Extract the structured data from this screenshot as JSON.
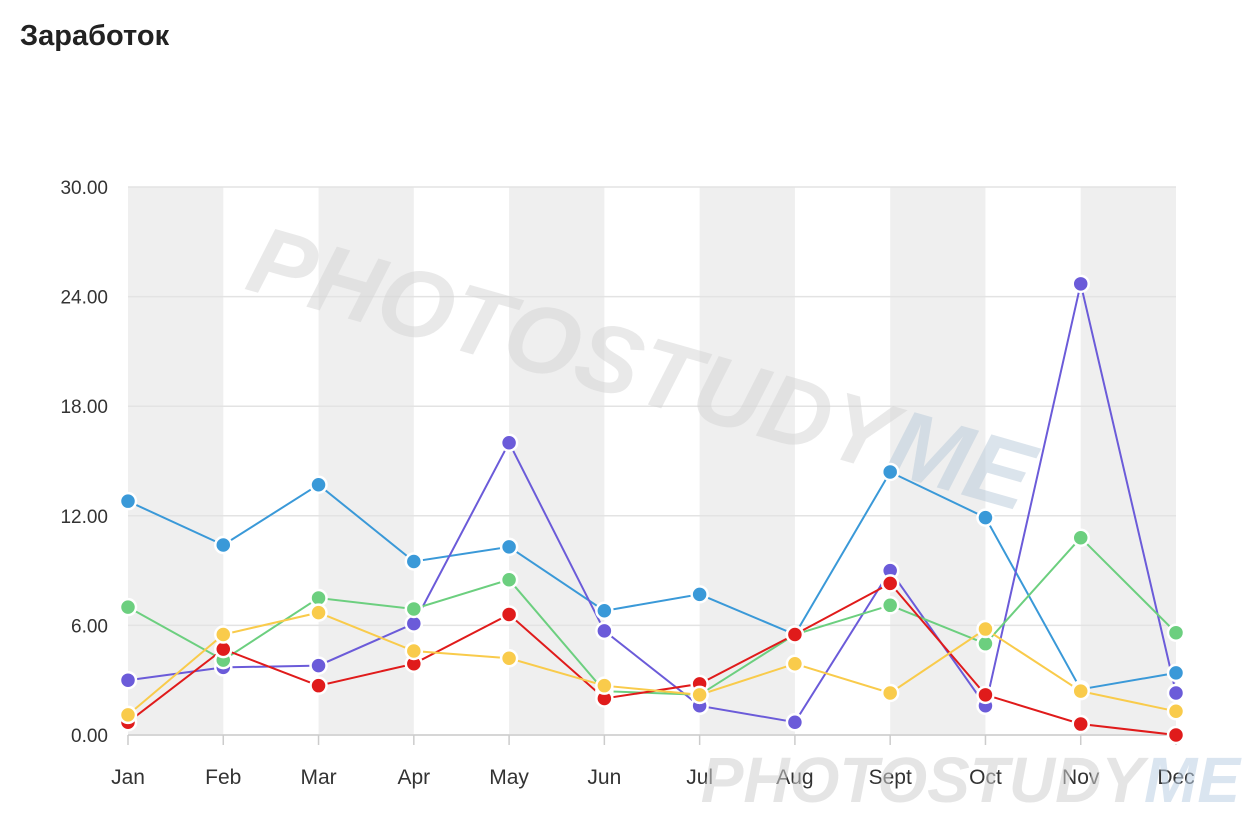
{
  "title": "Заработок",
  "watermark": {
    "text_a": "PHOTOSTUDY",
    "text_b": "ME"
  },
  "chart_data": {
    "type": "line",
    "categories": [
      "Jan",
      "Feb",
      "Mar",
      "Apr",
      "May",
      "Jun",
      "Jul",
      "Aug",
      "Sept",
      "Oct",
      "Nov",
      "Dec"
    ],
    "ylim": [
      0,
      30
    ],
    "yticks": [
      "0.00",
      "6.00",
      "12.00",
      "18.00",
      "24.00",
      "30.00"
    ],
    "ytick_values": [
      0,
      6,
      12,
      18,
      24,
      30
    ],
    "grid": true,
    "series": [
      {
        "color": "#3a99d8",
        "values": [
          12.8,
          10.4,
          13.7,
          9.5,
          10.3,
          6.8,
          7.7,
          5.5,
          14.4,
          11.9,
          2.5,
          3.4
        ]
      },
      {
        "color": "#6b5bd9",
        "values": [
          3.0,
          3.7,
          3.8,
          6.1,
          16.0,
          5.7,
          1.6,
          0.7,
          9.0,
          1.6,
          24.7,
          2.3
        ]
      },
      {
        "color": "#6ccf7f",
        "values": [
          7.0,
          4.1,
          7.5,
          6.9,
          8.5,
          2.4,
          2.2,
          5.5,
          7.1,
          5.0,
          10.8,
          5.6
        ]
      },
      {
        "color": "#e01b1b",
        "values": [
          0.7,
          4.7,
          2.7,
          3.9,
          6.6,
          2.0,
          2.8,
          5.5,
          8.3,
          2.2,
          0.6,
          0.0
        ]
      },
      {
        "color": "#f9cb4b",
        "values": [
          1.1,
          5.5,
          6.7,
          4.6,
          4.2,
          2.7,
          2.2,
          3.9,
          2.3,
          5.8,
          2.4,
          1.3
        ]
      }
    ]
  }
}
